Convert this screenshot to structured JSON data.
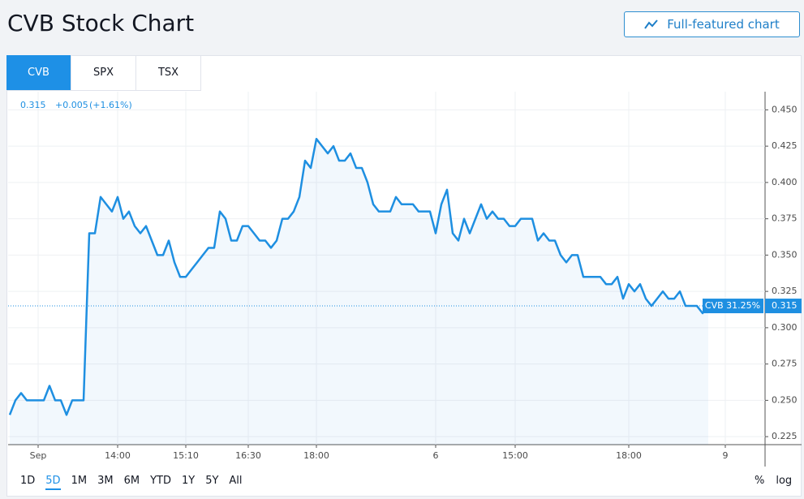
{
  "header": {
    "title": "CVB Stock Chart",
    "button": "Full-featured chart"
  },
  "tabs": [
    "CVB",
    "SPX",
    "TSX"
  ],
  "ranges": [
    "1D",
    "5D",
    "1M",
    "3M",
    "6M",
    "YTD",
    "1Y",
    "5Y",
    "All"
  ],
  "scale_options": [
    "%",
    "log"
  ],
  "chart_data": {
    "type": "line",
    "quote": {
      "price": "0.315",
      "change": "+0.005",
      "change_pct": "(+1.61%)"
    },
    "color": "#1e8fe1",
    "categories": [
      null,
      null,
      null,
      null,
      null,
      "Sep",
      null,
      null,
      null,
      null,
      null,
      null,
      null,
      null,
      null,
      null,
      null,
      null,
      null,
      "14:00",
      null,
      null,
      null,
      null,
      null,
      null,
      null,
      null,
      null,
      null,
      null,
      "15:10",
      null,
      null,
      null,
      null,
      null,
      null,
      null,
      null,
      null,
      null,
      "16:30",
      null,
      null,
      null,
      null,
      null,
      null,
      null,
      null,
      null,
      null,
      null,
      "18:00",
      null,
      null,
      null,
      null,
      null,
      null,
      null,
      null,
      null,
      null,
      null,
      null,
      null,
      null,
      null,
      null,
      null,
      null,
      null,
      null,
      "6",
      null,
      null,
      null,
      null,
      null,
      null,
      null,
      null,
      null,
      null,
      null,
      null,
      null,
      "15:00",
      null,
      null,
      null,
      null,
      null,
      null,
      null,
      null,
      null,
      null,
      null,
      null,
      null,
      null,
      null,
      null,
      null,
      null,
      null,
      "18:00",
      null,
      null,
      null,
      null,
      null,
      null,
      null,
      null,
      null,
      null,
      null,
      null,
      null,
      null,
      null,
      null,
      "9"
    ],
    "values": [
      0.24,
      0.25,
      0.255,
      0.25,
      0.25,
      0.25,
      0.25,
      0.26,
      0.25,
      0.25,
      0.24,
      0.25,
      0.25,
      0.25,
      0.365,
      0.365,
      0.39,
      0.385,
      0.38,
      0.39,
      0.375,
      0.38,
      0.37,
      0.365,
      0.37,
      0.36,
      0.35,
      0.35,
      0.36,
      0.345,
      0.335,
      0.335,
      0.34,
      0.345,
      0.35,
      0.355,
      0.355,
      0.38,
      0.375,
      0.36,
      0.36,
      0.37,
      0.37,
      0.365,
      0.36,
      0.36,
      0.355,
      0.36,
      0.375,
      0.375,
      0.38,
      0.39,
      0.415,
      0.41,
      0.43,
      0.425,
      0.42,
      0.425,
      0.415,
      0.415,
      0.42,
      0.41,
      0.41,
      0.4,
      0.385,
      0.38,
      0.38,
      0.38,
      0.39,
      0.385,
      0.385,
      0.385,
      0.38,
      0.38,
      0.38,
      0.365,
      0.385,
      0.395,
      0.365,
      0.36,
      0.375,
      0.365,
      0.375,
      0.385,
      0.375,
      0.38,
      0.375,
      0.375,
      0.37,
      0.37,
      0.375,
      0.375,
      0.375,
      0.36,
      0.365,
      0.36,
      0.36,
      0.35,
      0.345,
      0.35,
      0.35,
      0.335,
      0.335,
      0.335,
      0.335,
      0.33,
      0.33,
      0.335,
      0.32,
      0.33,
      0.325,
      0.33,
      0.32,
      0.315,
      0.32,
      0.325,
      0.32,
      0.32,
      0.325,
      0.315,
      0.315,
      0.315,
      0.31,
      0.315,
      null,
      null,
      null
    ],
    "ylim": [
      0.2195,
      0.4625
    ],
    "yticks": [
      {
        "value": 0.225,
        "label": "0.225"
      },
      {
        "value": 0.25,
        "label": "0.250"
      },
      {
        "value": 0.275,
        "label": "0.275"
      },
      {
        "value": 0.3,
        "label": "0.300"
      },
      {
        "value": 0.325,
        "label": "0.325"
      },
      {
        "value": 0.35,
        "label": "0.350"
      },
      {
        "value": 0.375,
        "label": "0.375"
      },
      {
        "value": 0.4,
        "label": "0.400"
      },
      {
        "value": 0.425,
        "label": "0.425"
      },
      {
        "value": 0.45,
        "label": "0.450"
      }
    ],
    "grid": true,
    "last_marker": {
      "label": "CVB 31.25%",
      "value": 0.315
    }
  }
}
